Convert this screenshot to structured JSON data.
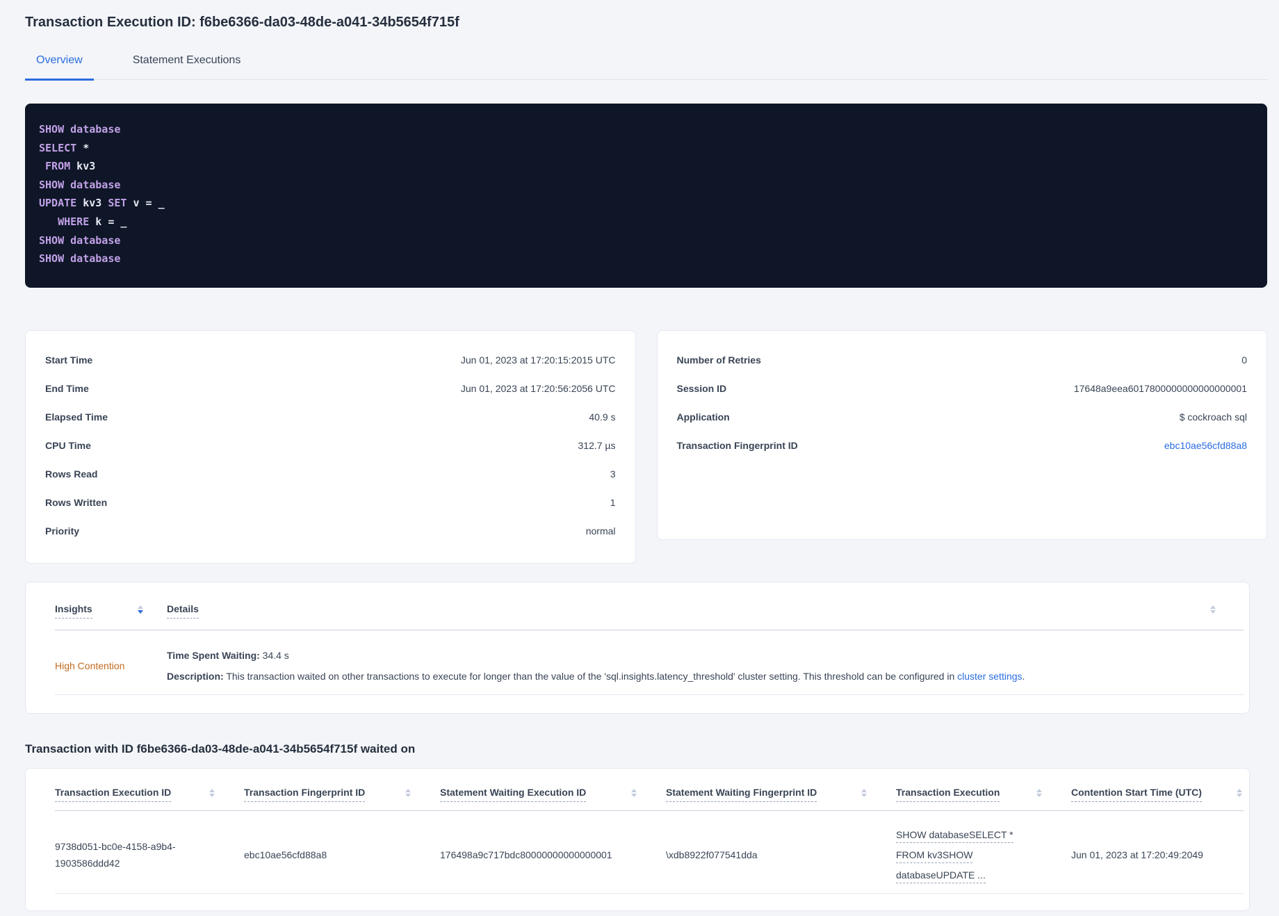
{
  "page_title": "Transaction Execution ID: f6be6366-da03-48de-a041-34b5654f715f",
  "tabs": {
    "overview": "Overview",
    "statement_executions": "Statement Executions"
  },
  "sql": {
    "lines": [
      {
        "segments": [
          {
            "text": "SHOW database",
            "kw": true
          }
        ]
      },
      {
        "segments": [
          {
            "text": "SELECT",
            "kw": true
          },
          {
            "text": " *",
            "kw": false
          }
        ]
      },
      {
        "segments": [
          {
            "text": " ",
            "kw": false
          },
          {
            "text": "FROM",
            "kw": true
          },
          {
            "text": " kv3",
            "kw": false
          }
        ]
      },
      {
        "segments": [
          {
            "text": "SHOW database",
            "kw": true
          }
        ]
      },
      {
        "segments": [
          {
            "text": "UPDATE",
            "kw": true
          },
          {
            "text": " kv3 ",
            "kw": false
          },
          {
            "text": "SET",
            "kw": true
          },
          {
            "text": " v = _",
            "kw": false
          }
        ]
      },
      {
        "segments": [
          {
            "text": "   ",
            "kw": false
          },
          {
            "text": "WHERE",
            "kw": true
          },
          {
            "text": " k = _",
            "kw": false
          }
        ]
      },
      {
        "segments": [
          {
            "text": "SHOW database",
            "kw": true
          }
        ]
      },
      {
        "segments": [
          {
            "text": "SHOW database",
            "kw": true
          }
        ]
      }
    ]
  },
  "summary_left": {
    "rows": [
      {
        "label": "Start Time",
        "value": "Jun 01, 2023 at 17:20:15:2015 UTC"
      },
      {
        "label": "End Time",
        "value": "Jun 01, 2023 at 17:20:56:2056 UTC"
      },
      {
        "label": "Elapsed Time",
        "value": "40.9 s"
      },
      {
        "label": "CPU Time",
        "value": "312.7 µs"
      },
      {
        "label": "Rows Read",
        "value": "3"
      },
      {
        "label": "Rows Written",
        "value": "1"
      },
      {
        "label": "Priority",
        "value": "normal"
      }
    ]
  },
  "summary_right": {
    "rows": [
      {
        "label": "Number of Retries",
        "value": "0"
      },
      {
        "label": "Session ID",
        "value": "17648a9eea6017800000000000000001"
      },
      {
        "label": "Application",
        "value": "$ cockroach sql"
      },
      {
        "label": "Transaction Fingerprint ID",
        "value": "ebc10ae56cfd88a8"
      }
    ]
  },
  "insights_table": {
    "headers": {
      "insights": "Insights",
      "details": "Details"
    },
    "row": {
      "insight": "High Contention",
      "waiting_label": "Time Spent Waiting:",
      "waiting_value": "34.4 s",
      "description_label": "Description:",
      "description_text": "This transaction waited on other transactions to execute for longer than the value of the 'sql.insights.latency_threshold' cluster setting. This threshold can be configured in ",
      "description_link": "cluster settings",
      "description_suffix": "."
    }
  },
  "waited_on": {
    "title": "Transaction with ID f6be6366-da03-48de-a041-34b5654f715f waited on",
    "headers": [
      "Transaction Execution ID",
      "Transaction Fingerprint ID",
      "Statement Waiting Execution ID",
      "Statement Waiting Fingerprint ID",
      "Transaction Execution",
      "Contention Start Time (UTC)"
    ],
    "row": {
      "txn_execution_id": "9738d051-bc0e-4158-a9b4-1903586ddd42",
      "txn_fingerprint_id": "ebc10ae56cfd88a8",
      "stmt_waiting_execution_id": "176498a9c717bdc80000000000000001",
      "stmt_waiting_fingerprint_id": "\\xdb8922f077541dda",
      "txn_execution_lines": [
        "SHOW databaseSELECT *",
        "FROM kv3SHOW",
        "databaseUPDATE ..."
      ],
      "contention_start": "Jun 01, 2023 at 17:20:49:2049"
    }
  },
  "colors": {
    "accent_blue": "#2b6cdf",
    "link_blue": "#2b6cdf",
    "high_contention_orange": "#c26a1e",
    "page_background": "#f3f5f9",
    "code_background": "#0e1627",
    "code_keyword": "#c2a1e8",
    "code_plain": "#e9e9f4"
  }
}
